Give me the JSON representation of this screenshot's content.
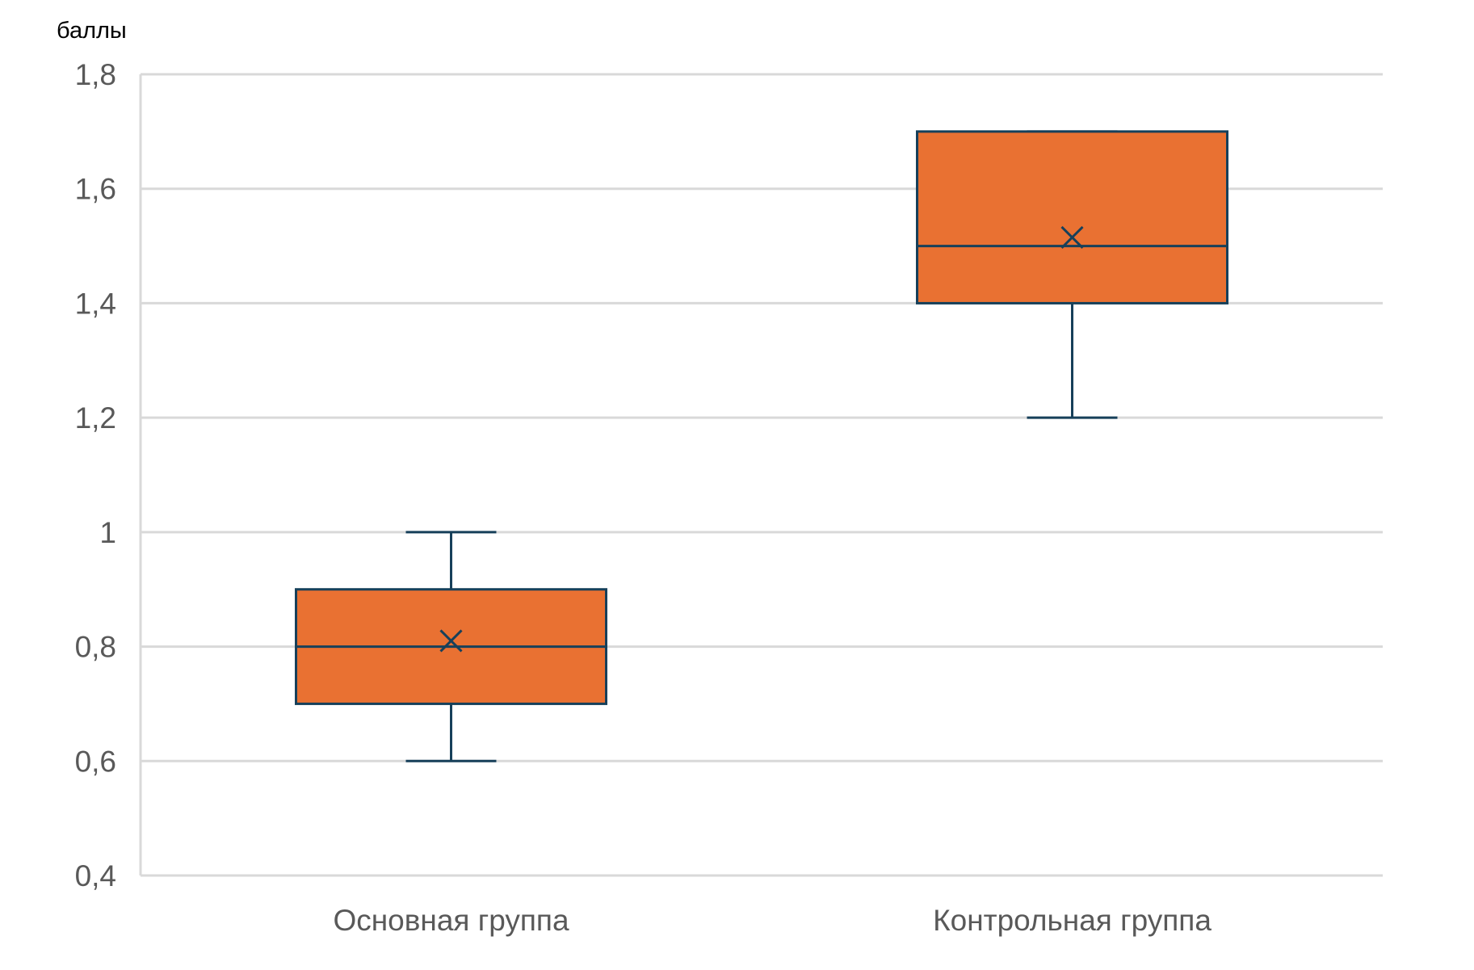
{
  "chart_data": {
    "type": "boxplot",
    "ylabel": "баллы",
    "ylim": [
      0.4,
      1.8
    ],
    "ytick_values": [
      0.4,
      0.6,
      0.8,
      1.0,
      1.2,
      1.4,
      1.6,
      1.8
    ],
    "ytick_labels": [
      "0,4",
      "0,6",
      "0,8",
      "1",
      "1,2",
      "1,4",
      "1,6",
      "1,8"
    ],
    "grid": true,
    "categories": [
      "Основная группа",
      "Контрольная группа"
    ],
    "boxes": [
      {
        "category": "Основная группа",
        "min": 0.6,
        "q1": 0.7,
        "median": 0.8,
        "q3": 0.9,
        "max": 1.0,
        "mean": 0.81
      },
      {
        "category": "Контрольная группа",
        "min": 1.2,
        "q1": 1.4,
        "median": 1.5,
        "q3": 1.7,
        "max": 1.7,
        "mean": 1.515
      }
    ],
    "colors": {
      "box_fill": "#e97132",
      "box_edge": "#17405a",
      "grid": "#d9d9d9",
      "tick_text": "#595959"
    }
  }
}
